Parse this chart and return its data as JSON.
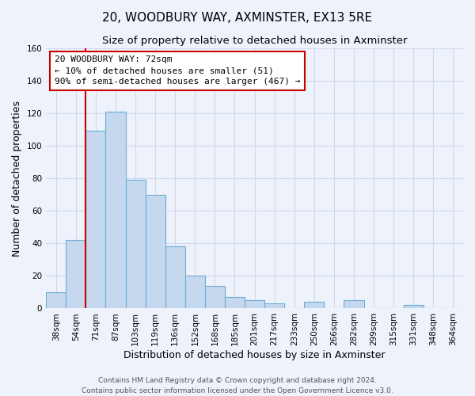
{
  "title": "20, WOODBURY WAY, AXMINSTER, EX13 5RE",
  "subtitle": "Size of property relative to detached houses in Axminster",
  "xlabel": "Distribution of detached houses by size in Axminster",
  "ylabel": "Number of detached properties",
  "bin_labels": [
    "38sqm",
    "54sqm",
    "71sqm",
    "87sqm",
    "103sqm",
    "119sqm",
    "136sqm",
    "152sqm",
    "168sqm",
    "185sqm",
    "201sqm",
    "217sqm",
    "233sqm",
    "250sqm",
    "266sqm",
    "282sqm",
    "299sqm",
    "315sqm",
    "331sqm",
    "348sqm",
    "364sqm"
  ],
  "bar_values": [
    10,
    42,
    109,
    121,
    79,
    70,
    38,
    20,
    14,
    7,
    5,
    3,
    0,
    4,
    0,
    5,
    0,
    0,
    2,
    0,
    0
  ],
  "bar_color": "#c5d8ee",
  "bar_edge_color": "#6baed6",
  "vline_x_index": 2,
  "vline_color": "#cc0000",
  "ylim": [
    0,
    160
  ],
  "yticks": [
    0,
    20,
    40,
    60,
    80,
    100,
    120,
    140,
    160
  ],
  "annotation_box_text": "20 WOODBURY WAY: 72sqm\n← 10% of detached houses are smaller (51)\n90% of semi-detached houses are larger (467) →",
  "footer_line1": "Contains HM Land Registry data © Crown copyright and database right 2024.",
  "footer_line2": "Contains public sector information licensed under the Open Government Licence v3.0.",
  "background_color": "#eef2fb",
  "grid_color": "#d0d8ee",
  "title_fontsize": 11,
  "subtitle_fontsize": 9.5,
  "axis_label_fontsize": 9,
  "tick_fontsize": 7.5,
  "annotation_fontsize": 8,
  "footer_fontsize": 6.5
}
